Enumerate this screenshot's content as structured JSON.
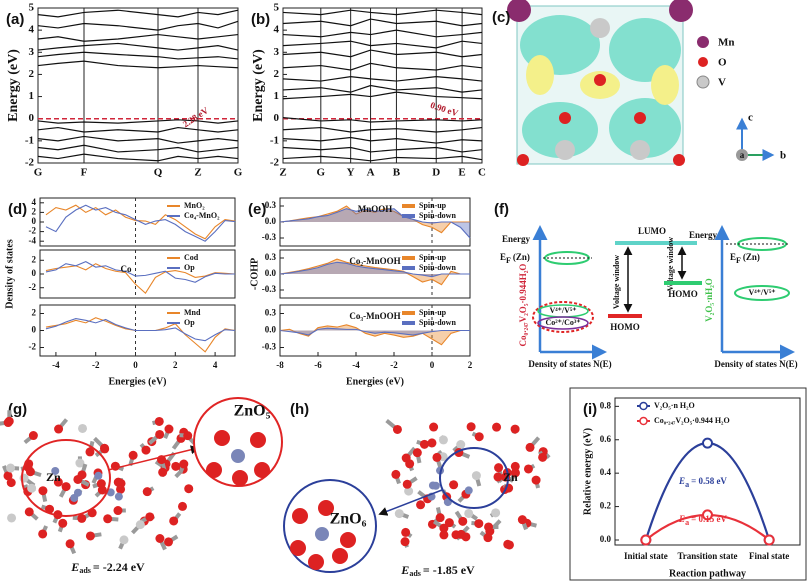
{
  "chart_data": [
    {
      "type": "band",
      "panel_label": "(a)",
      "ylabel": "Energy (eV)",
      "color": "#111111",
      "xgrid": true,
      "fermi_level": 0,
      "annotations": [
        "2.28 eV"
      ],
      "x": [
        0,
        0.1,
        0.23,
        0.4,
        0.6,
        0.7,
        0.8,
        0.9,
        1
      ],
      "xlim": [
        0,
        1
      ],
      "xticks": [
        {
          "value": 0,
          "label": "G"
        },
        {
          "value": 0.23,
          "label": "F"
        },
        {
          "value": 0.6,
          "label": "Q"
        },
        {
          "value": 0.8,
          "label": "Z"
        },
        {
          "value": 1,
          "label": "G"
        }
      ],
      "ylim": [
        -2,
        5
      ],
      "yticks": [
        -2,
        -1,
        0,
        1,
        2,
        3,
        4,
        5
      ],
      "series": [
        {
          "values": [
            2.4,
            2.5,
            2.6,
            2.4,
            2.3,
            2.35,
            2.4,
            2.35,
            2.3
          ]
        },
        {
          "values": [
            2.8,
            2.9,
            3.0,
            2.9,
            2.8,
            2.7,
            2.75,
            2.8,
            2.7
          ]
        },
        {
          "values": [
            3.1,
            3.2,
            3.3,
            3.4,
            3.2,
            3.1,
            3.2,
            3.3,
            3.1
          ]
        },
        {
          "values": [
            3.6,
            3.7,
            3.5,
            3.6,
            3.8,
            3.7,
            3.6,
            3.7,
            3.8
          ]
        },
        {
          "values": [
            4.2,
            4.1,
            4.3,
            4.2,
            4.0,
            4.2,
            4.3,
            4.1,
            4.4
          ]
        },
        {
          "values": [
            4.7,
            4.6,
            4.8,
            4.9,
            4.7,
            4.6,
            4.8,
            4.7,
            4.9
          ]
        },
        {
          "values": [
            -0.1,
            -0.2,
            -0.15,
            -0.2,
            -0.1,
            -0.05,
            -0.1,
            -0.2,
            -0.1
          ]
        },
        {
          "values": [
            -0.5,
            -0.4,
            -0.6,
            -0.5,
            -0.6,
            -0.4,
            -0.5,
            -0.6,
            -0.5
          ]
        },
        {
          "values": [
            -0.9,
            -1.0,
            -0.8,
            -1.0,
            -0.9,
            -1.1,
            -1.0,
            -0.9,
            -1.0
          ]
        },
        {
          "values": [
            -1.3,
            -1.4,
            -1.2,
            -1.5,
            -1.4,
            -1.3,
            -1.5,
            -1.4,
            -1.3
          ]
        },
        {
          "values": [
            -1.7,
            -1.8,
            -1.6,
            -1.8,
            -1.9,
            -1.7,
            -1.8,
            -1.7,
            -1.8
          ]
        }
      ]
    },
    {
      "type": "band",
      "panel_label": "(b)",
      "ylabel": "Energy (eV)",
      "color": "#111111",
      "xgrid": true,
      "fermi_level": 0,
      "annotations": [
        "0.90 eV"
      ],
      "x": [
        0,
        0.19,
        0.34,
        0.44,
        0.57,
        0.77,
        0.9,
        1
      ],
      "xlim": [
        0,
        1
      ],
      "xticks": [
        {
          "value": 0,
          "label": "Z"
        },
        {
          "value": 0.19,
          "label": "G"
        },
        {
          "value": 0.34,
          "label": "Y"
        },
        {
          "value": 0.44,
          "label": "A"
        },
        {
          "value": 0.57,
          "label": "B"
        },
        {
          "value": 0.77,
          "label": "D"
        },
        {
          "value": 0.9,
          "label": "E"
        },
        {
          "value": 1,
          "label": "C"
        }
      ],
      "ylim": [
        -2,
        5
      ],
      "yticks": [
        -2,
        -1,
        0,
        1,
        2,
        3,
        4,
        5
      ],
      "series": [
        {
          "values": [
            0.9,
            1.0,
            1.1,
            1.0,
            1.2,
            1.0,
            0.95,
            0.9
          ]
        },
        {
          "values": [
            1.3,
            1.4,
            1.2,
            1.5,
            1.3,
            1.4,
            1.2,
            1.3
          ]
        },
        {
          "values": [
            1.8,
            1.7,
            1.9,
            1.8,
            1.7,
            1.9,
            1.8,
            1.7
          ]
        },
        {
          "values": [
            2.3,
            2.4,
            2.2,
            2.5,
            2.3,
            2.2,
            2.4,
            2.3
          ]
        },
        {
          "values": [
            2.9,
            3.0,
            2.8,
            3.1,
            2.9,
            3.0,
            2.8,
            2.9
          ]
        },
        {
          "values": [
            3.3,
            3.4,
            3.5,
            3.3,
            3.4,
            3.2,
            3.5,
            3.4
          ]
        },
        {
          "values": [
            3.8,
            3.7,
            3.9,
            3.8,
            4.0,
            3.7,
            3.8,
            3.9
          ]
        },
        {
          "values": [
            4.3,
            4.4,
            4.2,
            4.5,
            4.3,
            4.4,
            4.2,
            4.3
          ]
        },
        {
          "values": [
            4.8,
            4.7,
            4.9,
            4.8,
            4.7,
            4.9,
            4.8,
            4.7
          ]
        },
        {
          "values": [
            0.05,
            -0.1,
            -0.05,
            -0.15,
            -0.1,
            -0.05,
            -0.1,
            -0.05
          ]
        },
        {
          "values": [
            -0.5,
            -0.4,
            -0.6,
            -0.5,
            -0.45,
            -0.6,
            -0.5,
            -0.4
          ]
        },
        {
          "values": [
            -0.9,
            -1.0,
            -0.85,
            -1.0,
            -0.9,
            -1.1,
            -0.95,
            -1.0
          ]
        },
        {
          "values": [
            -1.3,
            -1.4,
            -1.3,
            -1.5,
            -1.4,
            -1.3,
            -1.5,
            -1.4
          ]
        },
        {
          "values": [
            -1.8,
            -1.7,
            -1.8,
            -1.9,
            -1.75,
            -1.8,
            -1.7,
            -1.85
          ]
        }
      ]
    },
    {
      "type": "line",
      "panel_label": "(d)",
      "fermi_level": 0,
      "legend": "upper right",
      "x": [
        -4.5,
        -4,
        -3.5,
        -3,
        -2.5,
        -2,
        -1.5,
        -1,
        -0.5,
        0,
        0.5,
        1,
        1.5,
        2,
        2.5,
        3,
        3.5,
        4,
        4.5,
        5
      ],
      "xlim": [
        -4.8,
        5
      ],
      "ylim": [
        -5,
        5
      ],
      "yticks": [
        -4,
        -2,
        0,
        2,
        4
      ],
      "series": [
        {
          "name": "MnO₂",
          "color": "#e8862a",
          "values": [
            1.5,
            3,
            2.5,
            3.5,
            2,
            3,
            1.5,
            2.5,
            1,
            0.3,
            0.2,
            -0.5,
            1.5,
            0.5,
            -1,
            -2.5,
            -3.5,
            -1,
            0.5,
            0.2
          ]
        },
        {
          "name": "Co₄-MnO₂",
          "color": "#5a6fc0",
          "values": [
            -1,
            -2,
            1,
            2.5,
            3.5,
            2.5,
            3,
            2,
            1.5,
            0.5,
            -0.5,
            0.2,
            0.5,
            -0.5,
            -2,
            -3,
            -4,
            -2,
            0.3,
            0.1
          ]
        }
      ]
    },
    {
      "type": "line",
      "ylabel": "Density of states",
      "fermi_level": 0,
      "legend": "upper right",
      "annotations": [
        "Co"
      ],
      "x": [
        -4.5,
        -4,
        -3.5,
        -3,
        -2.5,
        -2,
        -1.5,
        -1,
        -0.5,
        0,
        0.5,
        1,
        1.5,
        2,
        2.5,
        3,
        3.5,
        4,
        4.5,
        5
      ],
      "xlim": [
        -4.8,
        5
      ],
      "ylim": [
        -3.5,
        3.5
      ],
      "yticks": [
        -2,
        0,
        2
      ],
      "series": [
        {
          "name": "Cod",
          "color": "#e8862a",
          "values": [
            0.5,
            0.8,
            1,
            1.2,
            0.6,
            1.5,
            0.8,
            0.4,
            0.2,
            -1.5,
            -2.8,
            -0.5,
            0.3,
            0.5,
            0.2,
            -0.5,
            -0.3,
            0.2,
            0.1,
            0
          ]
        },
        {
          "name": "Op",
          "color": "#5a6fc0",
          "values": [
            0.3,
            0.6,
            1.5,
            1.2,
            1.8,
            1,
            1.2,
            0.6,
            0.4,
            -0.3,
            -0.2,
            0.1,
            0.4,
            -0.6,
            -0.8,
            -1.2,
            -0.4,
            0.1,
            0,
            0
          ]
        }
      ]
    },
    {
      "type": "line",
      "xlabel": "Energies (eV)",
      "fermi_level": 0,
      "legend": "upper right",
      "x": [
        -4.5,
        -4,
        -3.5,
        -3,
        -2.5,
        -2,
        -1.5,
        -1,
        -0.5,
        0,
        0.5,
        1,
        1.5,
        2,
        2.5,
        3,
        3.5,
        4,
        4.5,
        5
      ],
      "xlim": [
        -4.8,
        5
      ],
      "xticks": [
        -4,
        -2,
        0,
        2,
        4
      ],
      "ylim": [
        -3,
        3
      ],
      "yticks": [
        -2,
        0,
        2
      ],
      "series": [
        {
          "name": "Mnd",
          "color": "#e8862a",
          "values": [
            0.4,
            0.6,
            0.8,
            1.2,
            0.9,
            1.5,
            1.1,
            0.6,
            0.2,
            0,
            0,
            0,
            0.3,
            0.8,
            -0.5,
            -1.5,
            -2.5,
            -0.8,
            0.2,
            0
          ]
        },
        {
          "name": "Op",
          "color": "#5a6fc0",
          "values": [
            0.2,
            0.5,
            1,
            1.4,
            1.2,
            0.9,
            1.3,
            0.7,
            0.3,
            0,
            0,
            0,
            0.1,
            0.3,
            -0.4,
            -1,
            -1.2,
            -0.5,
            0.1,
            0
          ]
        }
      ]
    },
    {
      "type": "area",
      "panel_label": "(e)",
      "title": "MnOOH",
      "fermi_level": 0,
      "legend": "upper right",
      "x": [
        -8,
        -7.5,
        -7,
        -6.5,
        -6,
        -5.5,
        -5,
        -4.5,
        -4,
        -3.5,
        -3,
        -2.5,
        -2,
        -1.5,
        -1,
        -0.5,
        0,
        0.5,
        1,
        1.5,
        2
      ],
      "xlim": [
        -8,
        2
      ],
      "ylim": [
        -0.45,
        0.45
      ],
      "yticks": [
        -0.3,
        {
          "value": 0,
          "label": "0.0"
        },
        0.3
      ],
      "series": [
        {
          "name": "Spin-up",
          "color": "#e8862a",
          "values": [
            0,
            0.02,
            0.05,
            0.08,
            0.1,
            0.15,
            0.2,
            0.3,
            0.15,
            0.22,
            0.18,
            0.25,
            0.2,
            0.1,
            0.05,
            -0.05,
            -0.1,
            -0.2,
            0,
            0,
            0
          ]
        },
        {
          "name": "Spin-down",
          "color": "#5a6fc0",
          "values": [
            0,
            0.02,
            0.04,
            0.06,
            0.1,
            0.12,
            0.18,
            0.25,
            0.2,
            0.24,
            0.2,
            0.22,
            0.25,
            0.1,
            0.05,
            0,
            -0.02,
            0,
            0,
            -0.1,
            -0.3
          ]
        }
      ]
    },
    {
      "type": "area",
      "title": "Co₂-MnOOH",
      "ylabel": "-COHP",
      "fermi_level": 0,
      "legend": "upper right",
      "x": [
        -8,
        -7.5,
        -7,
        -6.5,
        -6,
        -5.5,
        -5,
        -4.5,
        -4,
        -3.5,
        -3,
        -2.5,
        -2,
        -1.5,
        -1,
        -0.5,
        0,
        0.5,
        1,
        1.5,
        2
      ],
      "xlim": [
        -8,
        2
      ],
      "ylim": [
        -0.45,
        0.45
      ],
      "yticks": [
        -0.3,
        {
          "value": 0,
          "label": "0.0"
        },
        0.3
      ],
      "series": [
        {
          "name": "Spin-up",
          "color": "#e8862a",
          "values": [
            0,
            0.03,
            0.06,
            0.1,
            0.15,
            0.2,
            0.28,
            0.22,
            0.18,
            0.15,
            0.12,
            0.1,
            0.08,
            0.05,
            -0.05,
            -0.15,
            -0.1,
            -0.2,
            0.05,
            0,
            0
          ]
        },
        {
          "name": "Spin-down",
          "color": "#5a6fc0",
          "values": [
            0,
            0.02,
            0.05,
            0.08,
            0.12,
            0.18,
            0.22,
            0.2,
            0.15,
            0.12,
            0.1,
            0.08,
            0.06,
            0.04,
            0,
            -0.02,
            -0.05,
            0,
            0,
            0,
            0
          ]
        }
      ]
    },
    {
      "type": "area",
      "title": "Co₃-MnOOH",
      "xlabel": "Energies (eV)",
      "fermi_level": 0,
      "legend": "upper right",
      "x": [
        -8,
        -7.5,
        -7,
        -6.5,
        -6,
        -5.5,
        -5,
        -4.5,
        -4,
        -3.5,
        -3,
        -2.5,
        -2,
        -1.5,
        -1,
        -0.5,
        0,
        0.5,
        1,
        1.5,
        2
      ],
      "xlim": [
        -8,
        2
      ],
      "xticks": [
        -8,
        -6,
        -4,
        -2,
        0,
        2
      ],
      "ylim": [
        -0.45,
        0.45
      ],
      "yticks": [
        -0.3,
        {
          "value": 0,
          "label": "0.0"
        },
        0.3
      ],
      "series": [
        {
          "name": "Spin-up",
          "color": "#e8862a",
          "values": [
            0,
            0.02,
            -0.05,
            -0.1,
            0.05,
            0.08,
            0.06,
            0.1,
            0.05,
            -0.05,
            -0.1,
            -0.05,
            -0.08,
            -0.12,
            -0.1,
            -0.05,
            -0.15,
            -0.25,
            -0.05,
            0,
            0
          ]
        },
        {
          "name": "Spin-down",
          "color": "#5a6fc0",
          "values": [
            0,
            -0.02,
            -0.04,
            -0.08,
            0.02,
            0.04,
            0.03,
            0.02,
            0.02,
            -0.02,
            -0.05,
            -0.03,
            -0.04,
            -0.06,
            -0.08,
            -0.05,
            -0.02,
            0,
            0,
            0,
            0
          ]
        }
      ]
    },
    {
      "type": "line",
      "panel_label": "(i)",
      "smooth": true,
      "markers": true,
      "legend": "upper center",
      "xlabel": "Reaction pathway",
      "ylabel": "Relative energy (eV)",
      "categories": [
        "Initial state",
        "Transition state",
        "Final state"
      ],
      "ylim": [
        -0.03,
        0.85
      ],
      "yticks": [
        {
          "value": 0,
          "label": "0.0"
        },
        0.2,
        0.4,
        0.6,
        0.8
      ],
      "annotations": [
        {
          "symbol": "E",
          "subscript": "a",
          "text": "= 0.58 eV"
        },
        {
          "symbol": "E",
          "subscript": "a",
          "text": "= 0.15 eV"
        }
      ],
      "series": [
        {
          "name": "V₂O₅·n H₂O",
          "color": "#2b3f9a",
          "values": [
            0,
            0.58,
            0
          ]
        },
        {
          "name": "Co₀.₂₄₇V₂O₅·0.944 H₂O",
          "color": "#e8313a",
          "values": [
            0,
            0.15,
            0
          ]
        }
      ]
    }
  ],
  "diagrams": {
    "c": {
      "panel_label": "(c)",
      "legend": [
        "Mn",
        "O",
        "V"
      ],
      "axes": [
        "c",
        "a",
        "b"
      ]
    },
    "f": {
      "panel_label": "(f)",
      "energy": [
        "Energy",
        "Energy"
      ],
      "fermi": [
        {
          "symbol": "E",
          "subscript": "F",
          "text": "(Zn)"
        },
        {
          "symbol": "E",
          "subscript": "F",
          "text": "(Zn)"
        }
      ],
      "lumo": "LUMO",
      "homo": [
        "HOMO",
        "HOMO"
      ],
      "voltage_window": [
        "Voltage window",
        "Voltage window"
      ],
      "redox": [
        "V⁴⁺/V⁵⁺",
        "Co²⁺/Co³⁺",
        "V⁴⁺/V⁵⁺"
      ],
      "dos": [
        "Density of states N(E)",
        "Density of states N(E)"
      ],
      "materials": [
        "Co₀.₂₄₇V₂O₅·0.944H₂O",
        "V₂O₅·nH₂O"
      ]
    },
    "g": {
      "panel_label": "(g)",
      "atom": "Zn",
      "cluster": "ZnO₅",
      "energy": {
        "symbol": "E",
        "subscript": "ads",
        "text": "= -2.24 eV"
      }
    },
    "h": {
      "panel_label": "(h)",
      "atom": "Zn",
      "cluster": "ZnO₆",
      "energy": {
        "symbol": "E",
        "subscript": "ads",
        "text": "= -1.85 eV"
      }
    }
  }
}
